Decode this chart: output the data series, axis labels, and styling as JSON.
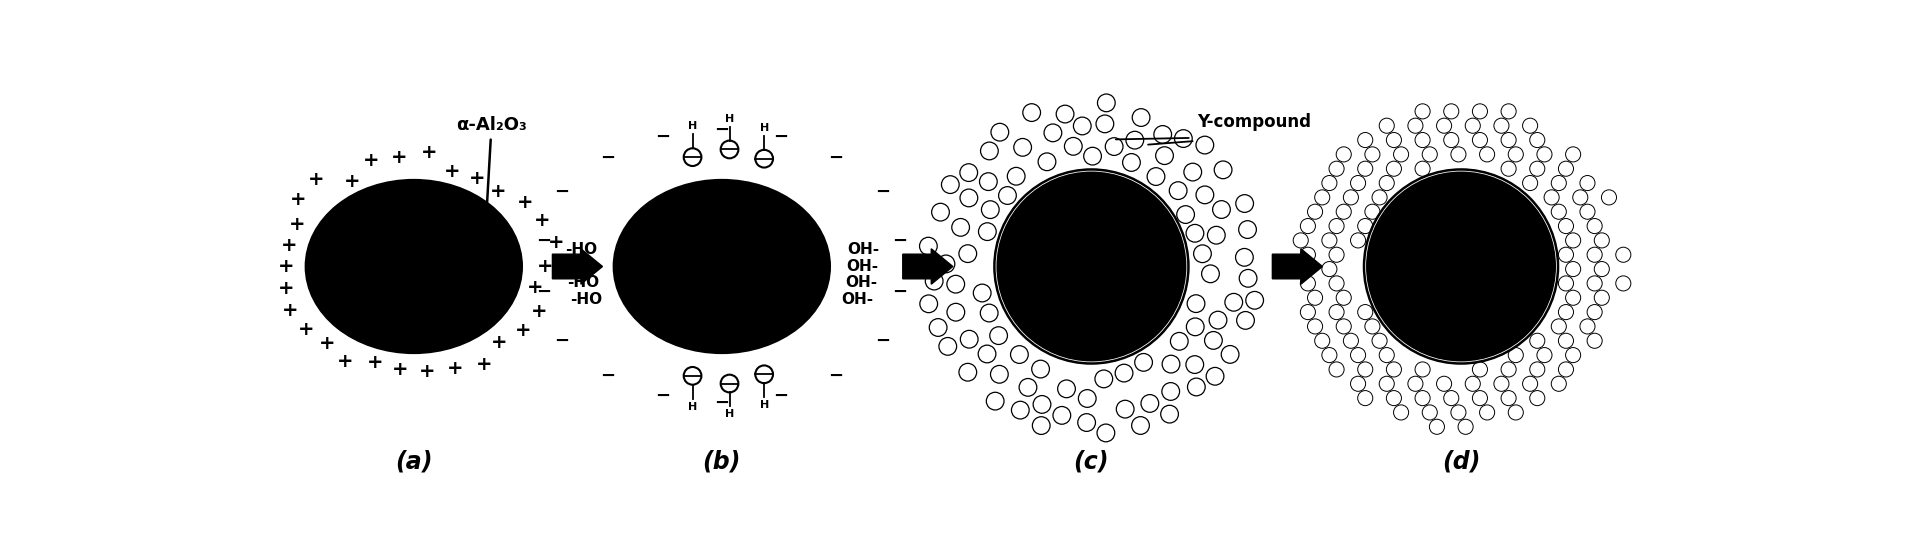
{
  "figsize": [
    19.17,
    5.46
  ],
  "dpi": 100,
  "bg_color": "#ffffff",
  "panel_labels": [
    "(a)",
    "(b)",
    "(c)",
    "(d)"
  ],
  "label_a": "α-Al₂O₃",
  "label_c": "Y-compound"
}
